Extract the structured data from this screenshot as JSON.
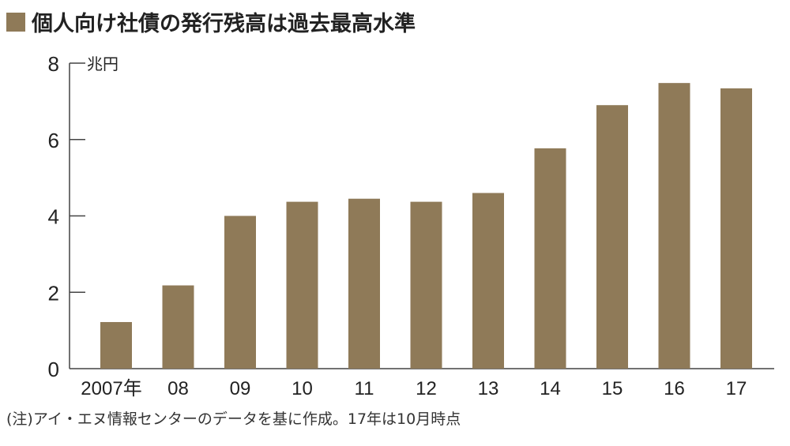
{
  "chart_data": {
    "type": "bar",
    "title": "個人向け社債の発行残高は過去最高水準",
    "ylabel": "兆円",
    "xlabel": "",
    "categories": [
      "2007年",
      "08",
      "09",
      "10",
      "11",
      "12",
      "13",
      "14",
      "15",
      "16",
      "17"
    ],
    "values": [
      1.22,
      2.18,
      4.0,
      4.37,
      4.45,
      4.37,
      4.6,
      5.77,
      6.9,
      7.48,
      7.34
    ],
    "ylim": [
      0,
      8
    ],
    "yticks": [
      0,
      2,
      4,
      6,
      8
    ],
    "grid": false,
    "bar_color": "#8f7a58",
    "note": "(注)アイ・エヌ情報センターのデータを基に作成。17年は10月時点"
  }
}
